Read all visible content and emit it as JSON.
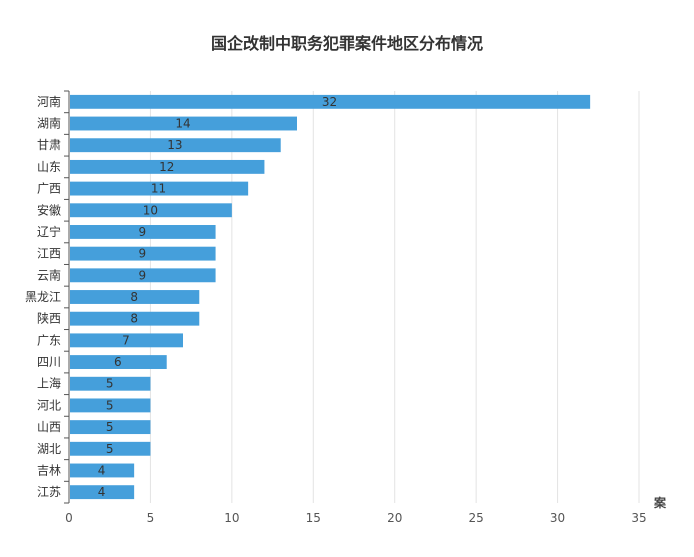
{
  "chart_data": {
    "type": "bar",
    "orientation": "horizontal",
    "title": "国企改制中职务犯罪案件地区分布情况",
    "categories": [
      "河南",
      "湖南",
      "甘肃",
      "山东",
      "广西",
      "安徽",
      "辽宁",
      "江西",
      "云南",
      "黑龙江",
      "陕西",
      "广东",
      "四川",
      "上海",
      "河北",
      "山西",
      "湖北",
      "吉林",
      "江苏"
    ],
    "values": [
      32,
      14,
      13,
      12,
      11,
      10,
      9,
      9,
      9,
      8,
      8,
      7,
      6,
      5,
      5,
      5,
      5,
      4,
      4
    ],
    "xlabel": "案",
    "ylabel": "",
    "xlim": [
      0,
      35
    ],
    "xticks": [
      0,
      5,
      10,
      15,
      20,
      25,
      30,
      35
    ],
    "grid": true,
    "legend": "none",
    "bar_color": "#459fdb"
  }
}
